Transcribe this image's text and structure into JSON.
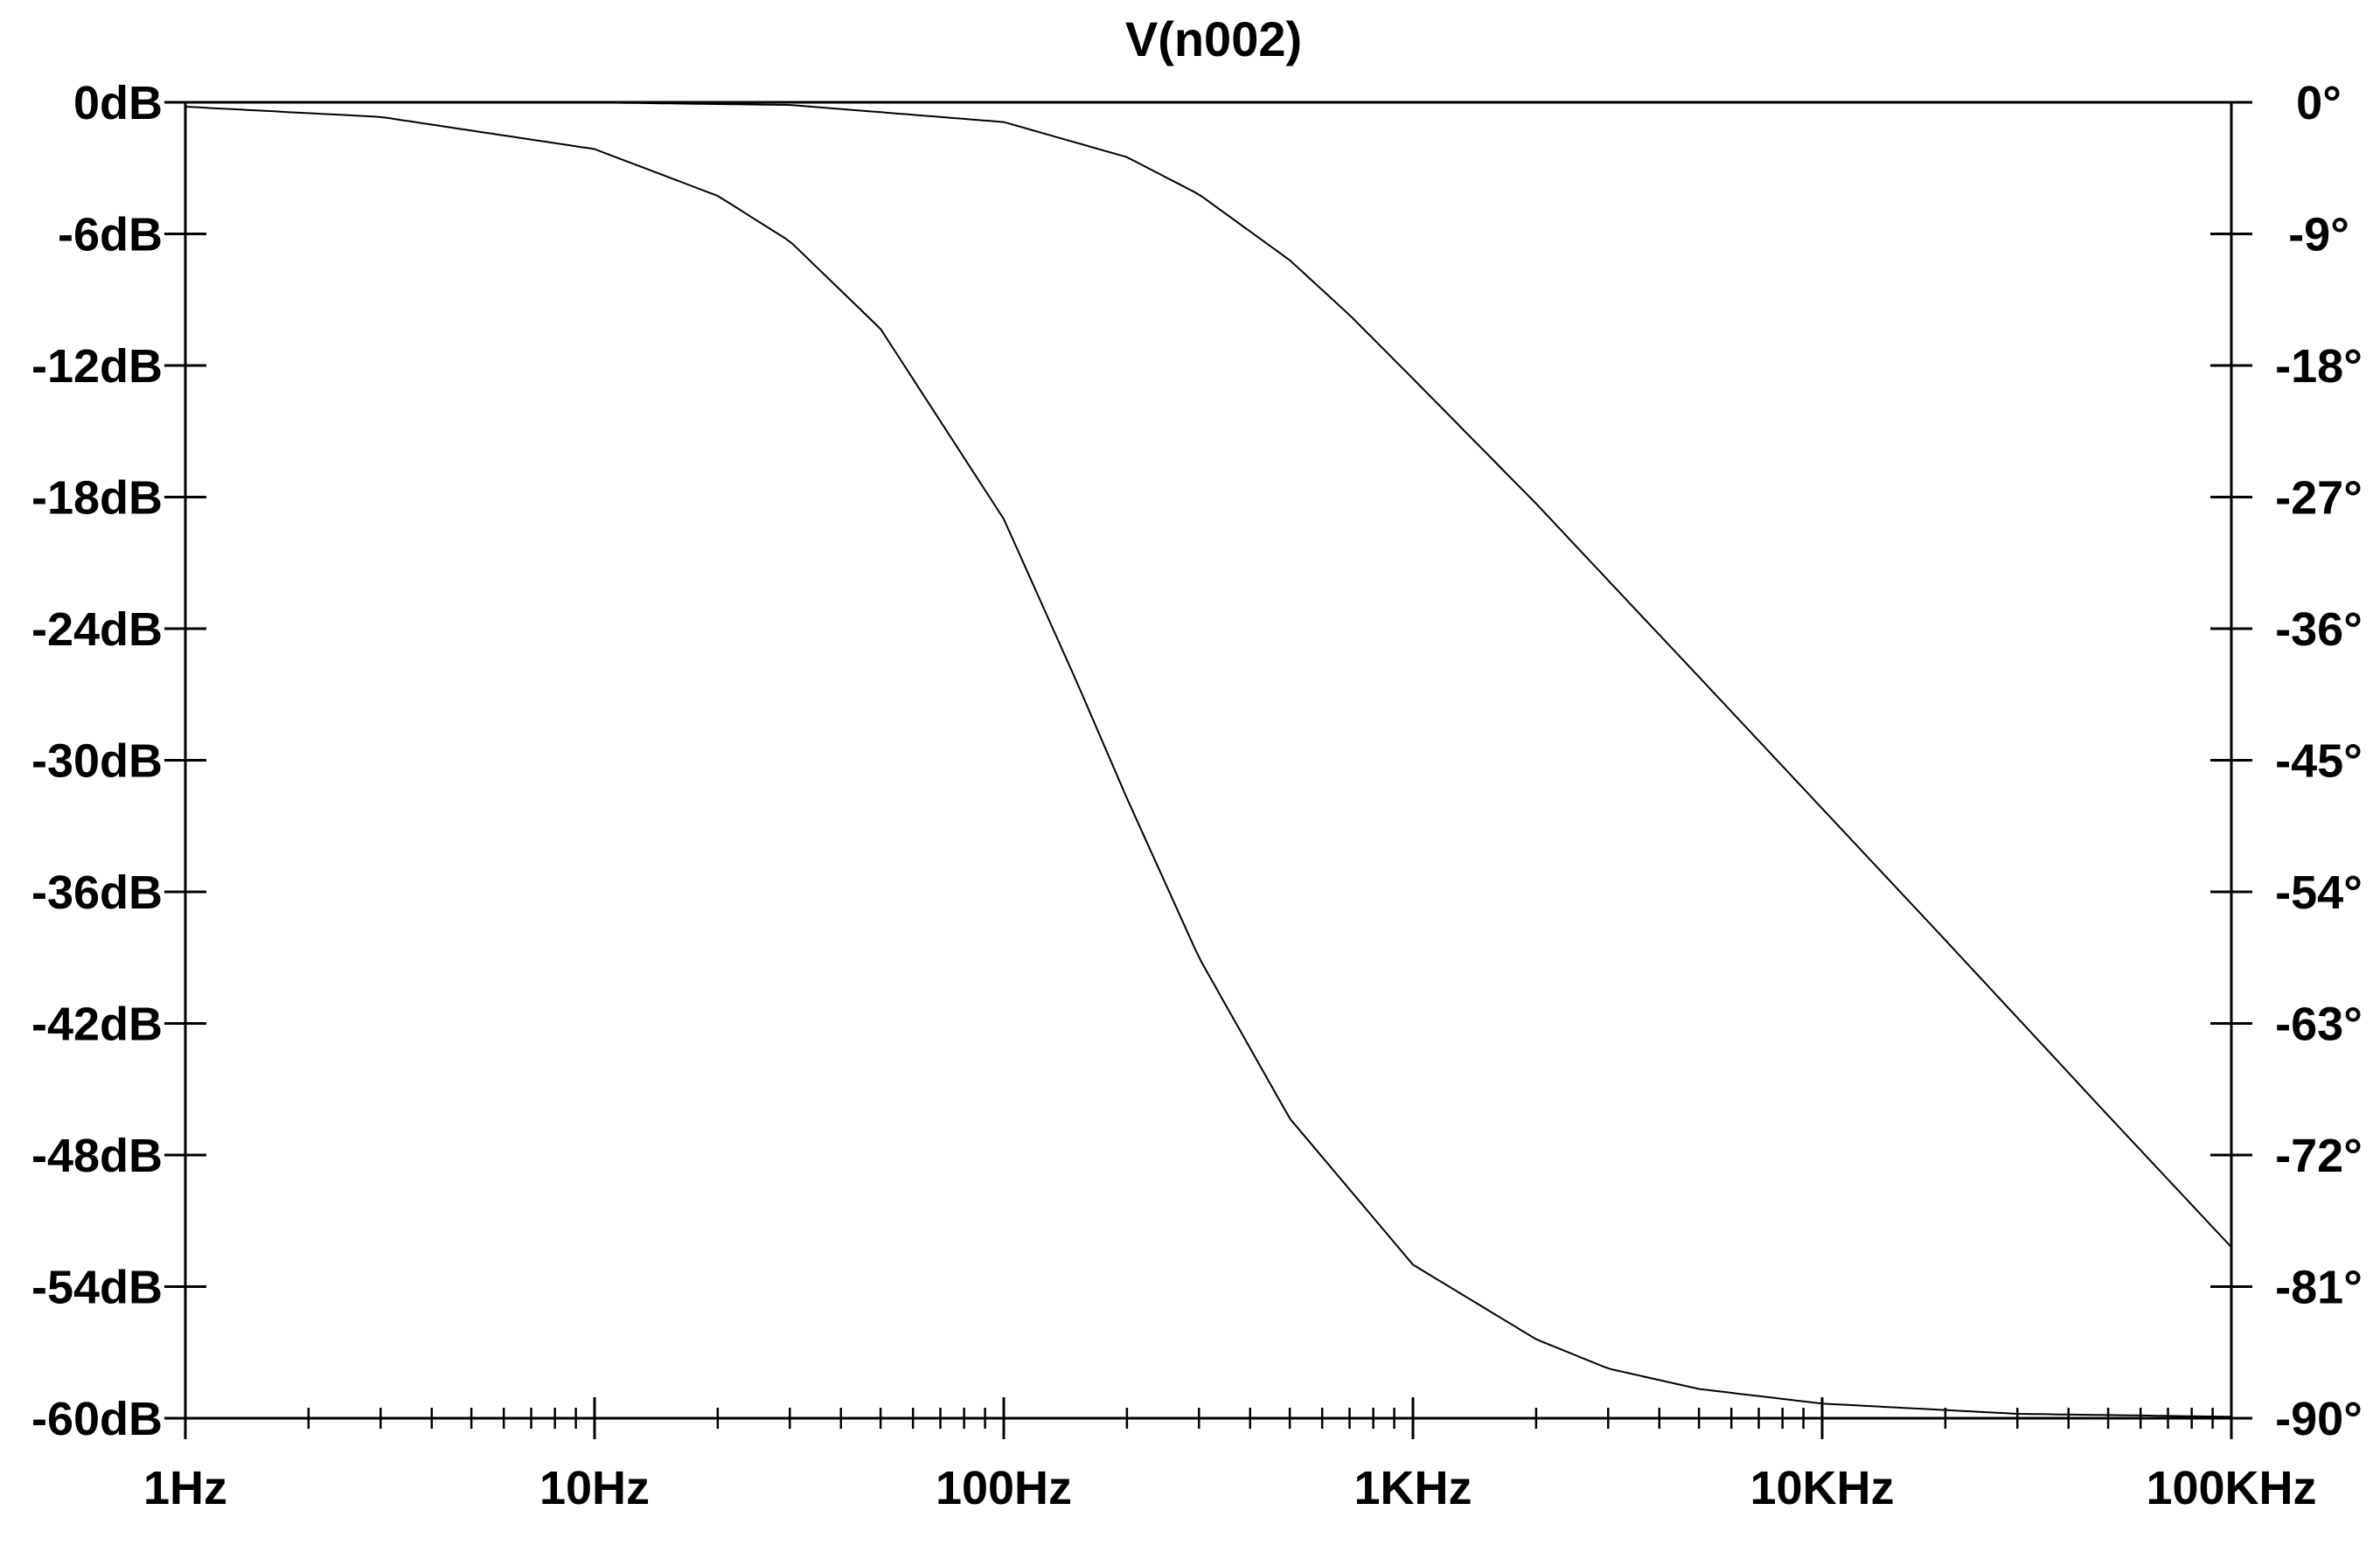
{
  "chart_data": {
    "type": "line",
    "title": "V(n002)",
    "x_scale": "log",
    "xlim": [
      1,
      100000
    ],
    "x_ticks": [
      1,
      10,
      100,
      1000,
      10000,
      100000
    ],
    "x_tick_labels": [
      "1Hz",
      "10Hz",
      "100Hz",
      "1KHz",
      "10KHz",
      "100KHz"
    ],
    "y_left": {
      "unit": "dB",
      "range": [
        -60,
        0
      ],
      "ticks": [
        0,
        -6,
        -12,
        -18,
        -24,
        -30,
        -36,
        -42,
        -48,
        -54,
        -60
      ],
      "tick_labels": [
        "0dB",
        "-6dB",
        "-12dB",
        "-18dB",
        "-24dB",
        "-30dB",
        "-36dB",
        "-42dB",
        "-48dB",
        "-54dB",
        "-60dB"
      ]
    },
    "y_right": {
      "unit": "degrees",
      "range": [
        -90,
        0
      ],
      "ticks": [
        0,
        -9,
        -18,
        -27,
        -36,
        -45,
        -54,
        -63,
        -72,
        -81,
        -90
      ],
      "tick_labels": [
        "0°",
        "-9°",
        "-18°",
        "-27°",
        "-36°",
        "-45°",
        "-54°",
        "-63°",
        "-72°",
        "-81°",
        "-90°"
      ]
    },
    "grid": false,
    "series": [
      {
        "axis": "left",
        "x": [
          1,
          3,
          10,
          30,
          100,
          200,
          300,
          500,
          700,
          1000,
          2000,
          3000,
          5000,
          10000,
          20000,
          50000,
          100000
        ],
        "y": [
          0,
          0,
          -0.01,
          -0.12,
          -0.9,
          -2.5,
          -4.2,
          -7.2,
          -9.7,
          -12.6,
          -18.3,
          -21.8,
          -26.2,
          -32.2,
          -38.2,
          -46.2,
          -52.2
        ]
      },
      {
        "axis": "right",
        "x": [
          1,
          3,
          10,
          20,
          30,
          50,
          100,
          150,
          200,
          300,
          500,
          1000,
          2000,
          3000,
          5000,
          10000,
          30000,
          100000
        ],
        "y": [
          -0.3,
          -1.0,
          -3.2,
          -6.4,
          -9.5,
          -15.5,
          -28.5,
          -39.5,
          -47.6,
          -58.5,
          -69.5,
          -79.5,
          -84.6,
          -86.6,
          -88.0,
          -89.0,
          -89.7,
          -89.9
        ]
      }
    ]
  }
}
